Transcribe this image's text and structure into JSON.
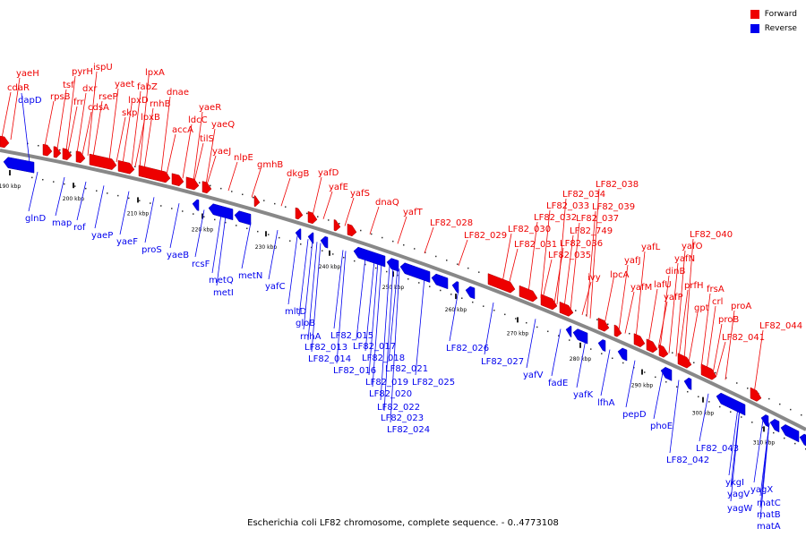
{
  "legend": {
    "forward_label": "Forward",
    "reverse_label": "Reverse",
    "forward_color": "#ee0000",
    "reverse_color": "#0000ee"
  },
  "caption": "Escherichia coli LF82 chromosome, complete sequence. - 0..4773108",
  "ticks": [
    "190 kbp",
    "200 kbp",
    "210 kbp",
    "220 kbp",
    "230 kbp",
    "240 kbp",
    "250 kbp",
    "260 kbp",
    "270 kbp",
    "280 kbp",
    "290 kbp",
    "300 kbp",
    "310 kbp"
  ],
  "forward_genes": [
    "cdaR",
    "yaeH",
    "rpsB",
    "tsf",
    "pyrH",
    "frr",
    "dxr",
    "ispU",
    "cdsA",
    "rseP",
    "yaet",
    "skp",
    "lpxD",
    "fabZ",
    "lpxA",
    "lpxB",
    "rnhB",
    "dnae",
    "accA",
    "ldcC",
    "yaeR",
    "tilS",
    "yaeQ",
    "yaeJ",
    "nlpE",
    "gmhB",
    "dkgB",
    "yafD",
    "yafE",
    "yafS",
    "dnaQ",
    "yafT",
    "LF82_028",
    "LF82_029",
    "LF82_030",
    "LF82_031",
    "LF82_032",
    "LF82_033",
    "LF82_034",
    "LF82_035",
    "LF82_036",
    "LF82_037",
    "LF82_038",
    "LF82_039",
    "LF82_749",
    "ivy",
    "lpcA",
    "yafJ",
    "yafM",
    "yafL",
    "lafU",
    "dinB",
    "yafN",
    "yafP",
    "yafO",
    "gpt",
    "prfH",
    "crl",
    "frsA",
    "LF82_040",
    "proB",
    "proA",
    "LF82_041",
    "LF82_044"
  ],
  "reverse_genes": [
    "dapD",
    "glnD",
    "map",
    "rof",
    "yaeP",
    "yaeF",
    "proS",
    "yaeB",
    "rcsF",
    "metQ",
    "metI",
    "metN",
    "yafC",
    "mltD",
    "gloB",
    "rnhA",
    "LF82_013",
    "LF82_014",
    "LF82_015",
    "LF82_016",
    "LF82_017",
    "LF82_018",
    "LF82_019",
    "LF82_020",
    "LF82_021",
    "LF82_022",
    "LF82_023",
    "LF82_024",
    "LF82_025",
    "LF82_026",
    "LF82_027",
    "yafV",
    "fadE",
    "yafK",
    "lfhA",
    "pepD",
    "phoE",
    "LF82_042",
    "LF82_043",
    "ykgI",
    "yagV",
    "yagW",
    "yagX",
    "matC",
    "matB",
    "matA"
  ]
}
